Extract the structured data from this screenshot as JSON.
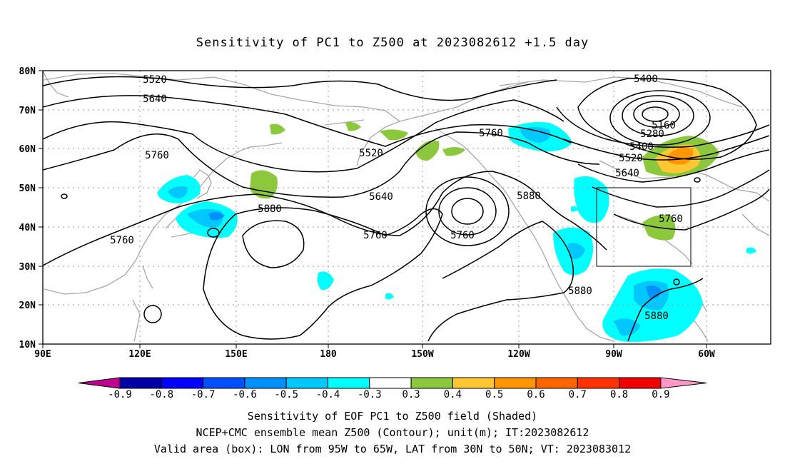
{
  "title": "Sensitivity of PC1 to Z500 at 2023082612 +1.5 day",
  "lat_labels": [
    "80N",
    "70N",
    "60N",
    "50N",
    "40N",
    "30N",
    "20N",
    "10N"
  ],
  "lon_labels": [
    "90E",
    "120E",
    "150E",
    "180",
    "150W",
    "120W",
    "90W",
    "60W"
  ],
  "contour_labels": [
    "5520",
    "5640",
    "5760",
    "5520",
    "5760",
    "5640",
    "5760",
    "5880",
    "5760",
    "5760",
    "5400",
    "5160",
    "5280",
    "5400",
    "5520",
    "5640",
    "5760",
    "5880",
    "5880",
    "5880"
  ],
  "colorbar": {
    "labels": [
      "-0.9",
      "-0.8",
      "-0.7",
      "-0.6",
      "-0.5",
      "-0.4",
      "-0.3",
      "0.3",
      "0.4",
      "0.5",
      "0.6",
      "0.7",
      "0.8",
      "0.9"
    ],
    "colors": [
      "#c0008f",
      "#0000a8",
      "#0000ff",
      "#0050ff",
      "#0090ff",
      "#00c8ff",
      "#00ffff",
      "#ffffff",
      "#8cc83c",
      "#ffc832",
      "#ff9600",
      "#ff6400",
      "#ff3200",
      "#f00000",
      "#ff96c8"
    ]
  },
  "captions": [
    "Sensitivity of EOF PC1 to Z500 field (Shaded)",
    "NCEP+CMC ensemble mean Z500 (Contour); unit(m); IT:2023082612",
    "Valid area (box): LON from 95W to 65W, LAT from 30N to 50N; VT: 2023083012"
  ]
}
